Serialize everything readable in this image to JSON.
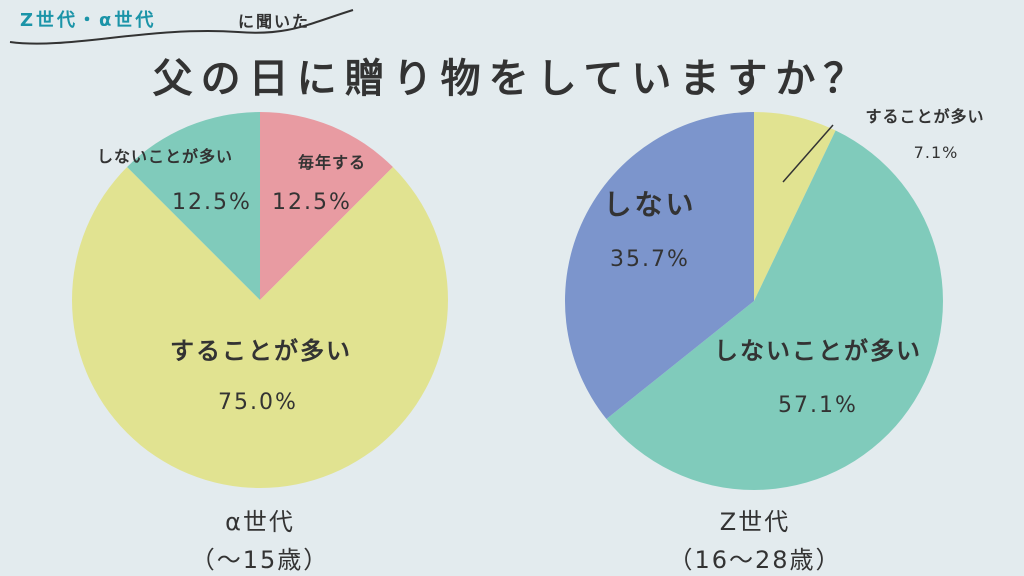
{
  "subtitle": {
    "generation_text": "Z世代・α世代",
    "suffix_text": "に聞いた"
  },
  "title": "父の日に贈り物をしていますか？",
  "colors": {
    "accent_text": "#1b94a8",
    "yellow": "#e1e391",
    "pink": "#e89ba2",
    "teal": "#80cbbb",
    "blue": "#7c95cc",
    "background": "#e3ebee",
    "text": "#333333"
  },
  "chart_data": [
    {
      "type": "pie",
      "group_label": "α世代",
      "group_range": "（〜15歳）",
      "slices": [
        {
          "label": "毎年する",
          "value": 12.5,
          "value_text": "12.5%",
          "color": "#e89ba2"
        },
        {
          "label": "することが多い",
          "value": 75.0,
          "value_text": "75.0%",
          "color": "#e1e391"
        },
        {
          "label": "しないことが多い",
          "value": 12.5,
          "value_text": "12.5%",
          "color": "#80cbbb"
        }
      ]
    },
    {
      "type": "pie",
      "group_label": "Z世代",
      "group_range": "（16〜28歳）",
      "slices": [
        {
          "label": "することが多い",
          "value": 7.1,
          "value_text": "7.1%",
          "color": "#e1e391"
        },
        {
          "label": "しないことが多い",
          "value": 57.1,
          "value_text": "57.1%",
          "color": "#80cbbb"
        },
        {
          "label": "しない",
          "value": 35.7,
          "value_text": "35.7%",
          "color": "#7c95cc"
        }
      ]
    }
  ]
}
